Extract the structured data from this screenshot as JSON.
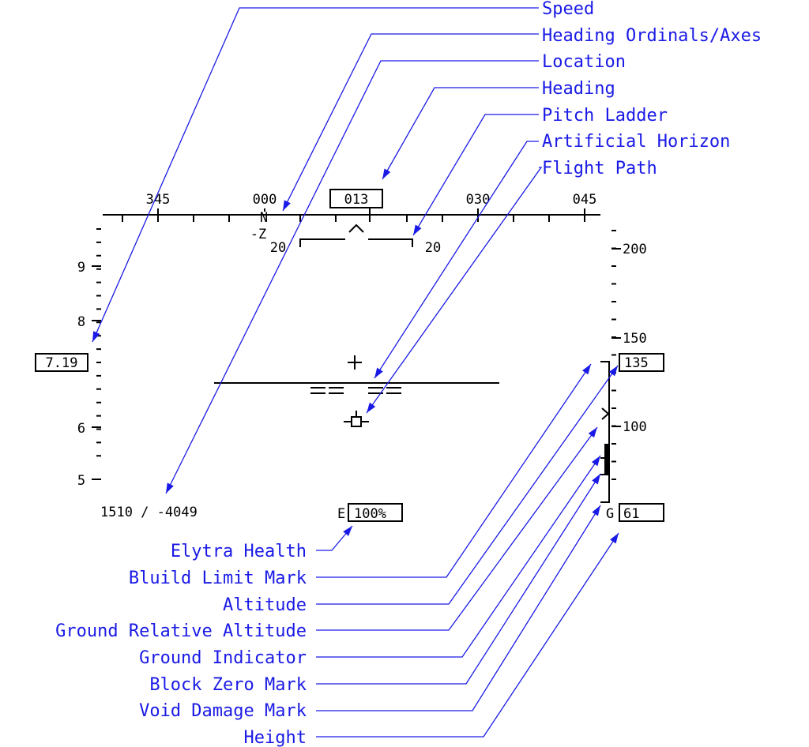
{
  "callouts_top": [
    {
      "id": "speed",
      "text": "Speed"
    },
    {
      "id": "ordinals",
      "text": "Heading Ordinals/Axes"
    },
    {
      "id": "location",
      "text": "Location"
    },
    {
      "id": "heading",
      "text": "Heading"
    },
    {
      "id": "pitch",
      "text": "Pitch Ladder"
    },
    {
      "id": "horizon",
      "text": "Artificial Horizon"
    },
    {
      "id": "flightpath",
      "text": "Flight Path"
    }
  ],
  "callouts_bottom": [
    {
      "id": "elytra",
      "text": "Elytra Health"
    },
    {
      "id": "buildlimit",
      "text": "Bluild Limit Mark"
    },
    {
      "id": "altitude",
      "text": "Altitude"
    },
    {
      "id": "groundalt",
      "text": "Ground Relative Altitude"
    },
    {
      "id": "groundind",
      "text": "Ground Indicator"
    },
    {
      "id": "blockzero",
      "text": "Block Zero Mark"
    },
    {
      "id": "voiddmg",
      "text": "Void Damage Mark"
    },
    {
      "id": "height",
      "text": "Height"
    }
  ],
  "hud": {
    "heading_ticks": [
      "345",
      "000",
      "030",
      "045"
    ],
    "heading_value": "013",
    "ordinal": "N",
    "axis": "-Z",
    "pitch_left": "20",
    "pitch_right": "20",
    "speed_ticks": [
      "9",
      "8",
      "6",
      "5"
    ],
    "speed_value": "7.19",
    "altitude_ticks": [
      "200",
      "150",
      "100"
    ],
    "altitude_value": "135",
    "location": "1510 / -4049",
    "elytra_prefix": "E",
    "elytra_value": "100%",
    "height_prefix": "G",
    "height_value": "61"
  }
}
